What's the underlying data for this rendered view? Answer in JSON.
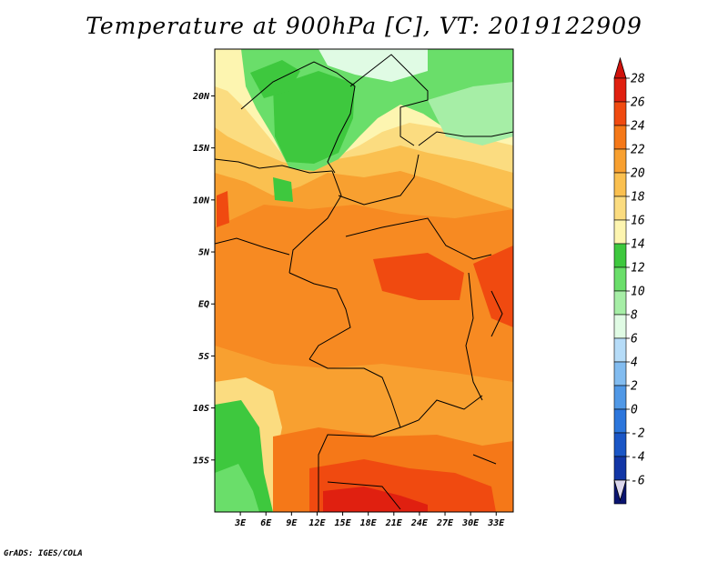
{
  "title": "Temperature at 900hPa [C], VT: 2019122909",
  "credit": "GrADS: IGES/COLA",
  "map": {
    "lat_range": [
      -20,
      24.5
    ],
    "lon_range": [
      0,
      35
    ],
    "lat_ticks": [
      {
        "value": 20,
        "label": "20N"
      },
      {
        "value": 15,
        "label": "15N"
      },
      {
        "value": 10,
        "label": "10N"
      },
      {
        "value": 5,
        "label": "5N"
      },
      {
        "value": 0,
        "label": "EQ"
      },
      {
        "value": -5,
        "label": "5S"
      },
      {
        "value": -10,
        "label": "10S"
      },
      {
        "value": -15,
        "label": "15S"
      }
    ],
    "lon_ticks": [
      {
        "value": 3,
        "label": "3E"
      },
      {
        "value": 6,
        "label": "6E"
      },
      {
        "value": 9,
        "label": "9E"
      },
      {
        "value": 12,
        "label": "12E"
      },
      {
        "value": 15,
        "label": "15E"
      },
      {
        "value": 18,
        "label": "18E"
      },
      {
        "value": 21,
        "label": "21E"
      },
      {
        "value": 24,
        "label": "24E"
      },
      {
        "value": 27,
        "label": "27E"
      },
      {
        "value": 30,
        "label": "30E"
      },
      {
        "value": 33,
        "label": "33E"
      }
    ]
  },
  "colorbar": {
    "levels": [
      {
        "label": "28",
        "color": "#e02010"
      },
      {
        "label": "26",
        "color": "#f04a10"
      },
      {
        "label": "24",
        "color": "#f57818"
      },
      {
        "label": "22",
        "color": "#f8a030"
      },
      {
        "label": "20",
        "color": "#fac050"
      },
      {
        "label": "18",
        "color": "#fbdc80"
      },
      {
        "label": "16",
        "color": "#fdf5b0"
      },
      {
        "label": "14",
        "color": "#3ec83e"
      },
      {
        "label": "12",
        "color": "#6ade6a"
      },
      {
        "label": "10",
        "color": "#a6eea6"
      },
      {
        "label": "8",
        "color": "#e0fbe4"
      },
      {
        "label": "6",
        "color": "#b6dcf8"
      },
      {
        "label": "4",
        "color": "#82bcf0"
      },
      {
        "label": "2",
        "color": "#5098e6"
      },
      {
        "label": "0",
        "color": "#2c76dc"
      },
      {
        "label": "-2",
        "color": "#1a56c6"
      },
      {
        "label": "-4",
        "color": "#1236a6"
      },
      {
        "label": "-6",
        "color": "#0a1470"
      }
    ],
    "under_color": "#dcd8ec",
    "over_color": "#d0120c"
  }
}
